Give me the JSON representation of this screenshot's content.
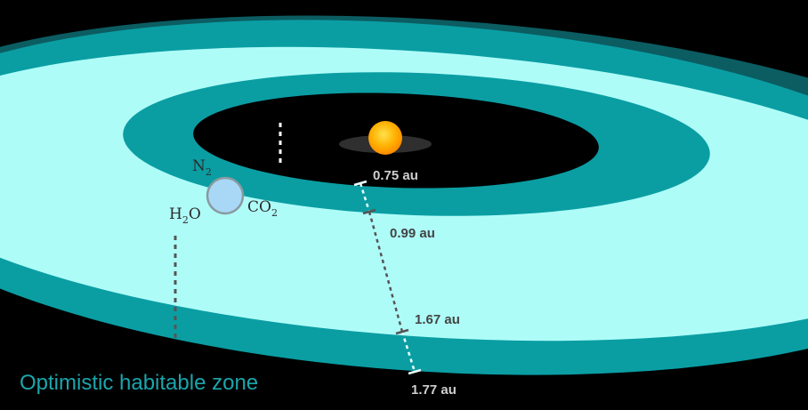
{
  "colors": {
    "background": "#000000",
    "outer_zone": "#0a9ea3",
    "outer_zone_shadow": "#0b5d62",
    "conservative_zone": "#aefcf8",
    "star": "#ffb000",
    "planet": "#a8d8f5",
    "dark_text": "#444444",
    "light_text": "#cfcfcf",
    "zone_label": "#1aa6ad"
  },
  "distances": [
    {
      "value": "0.75 au",
      "tone": "light"
    },
    {
      "value": "0.99 au",
      "tone": "dark"
    },
    {
      "value": "1.67 au",
      "tone": "dark"
    },
    {
      "value": "1.77 au",
      "tone": "light"
    }
  ],
  "molecules": {
    "n2": {
      "base": "N",
      "sub": "2"
    },
    "h2o": {
      "base": "H",
      "sub": "2",
      "tail": "O"
    },
    "co2": {
      "base": "CO",
      "sub": "2"
    }
  },
  "zone_label": "Optimistic habitable zone"
}
